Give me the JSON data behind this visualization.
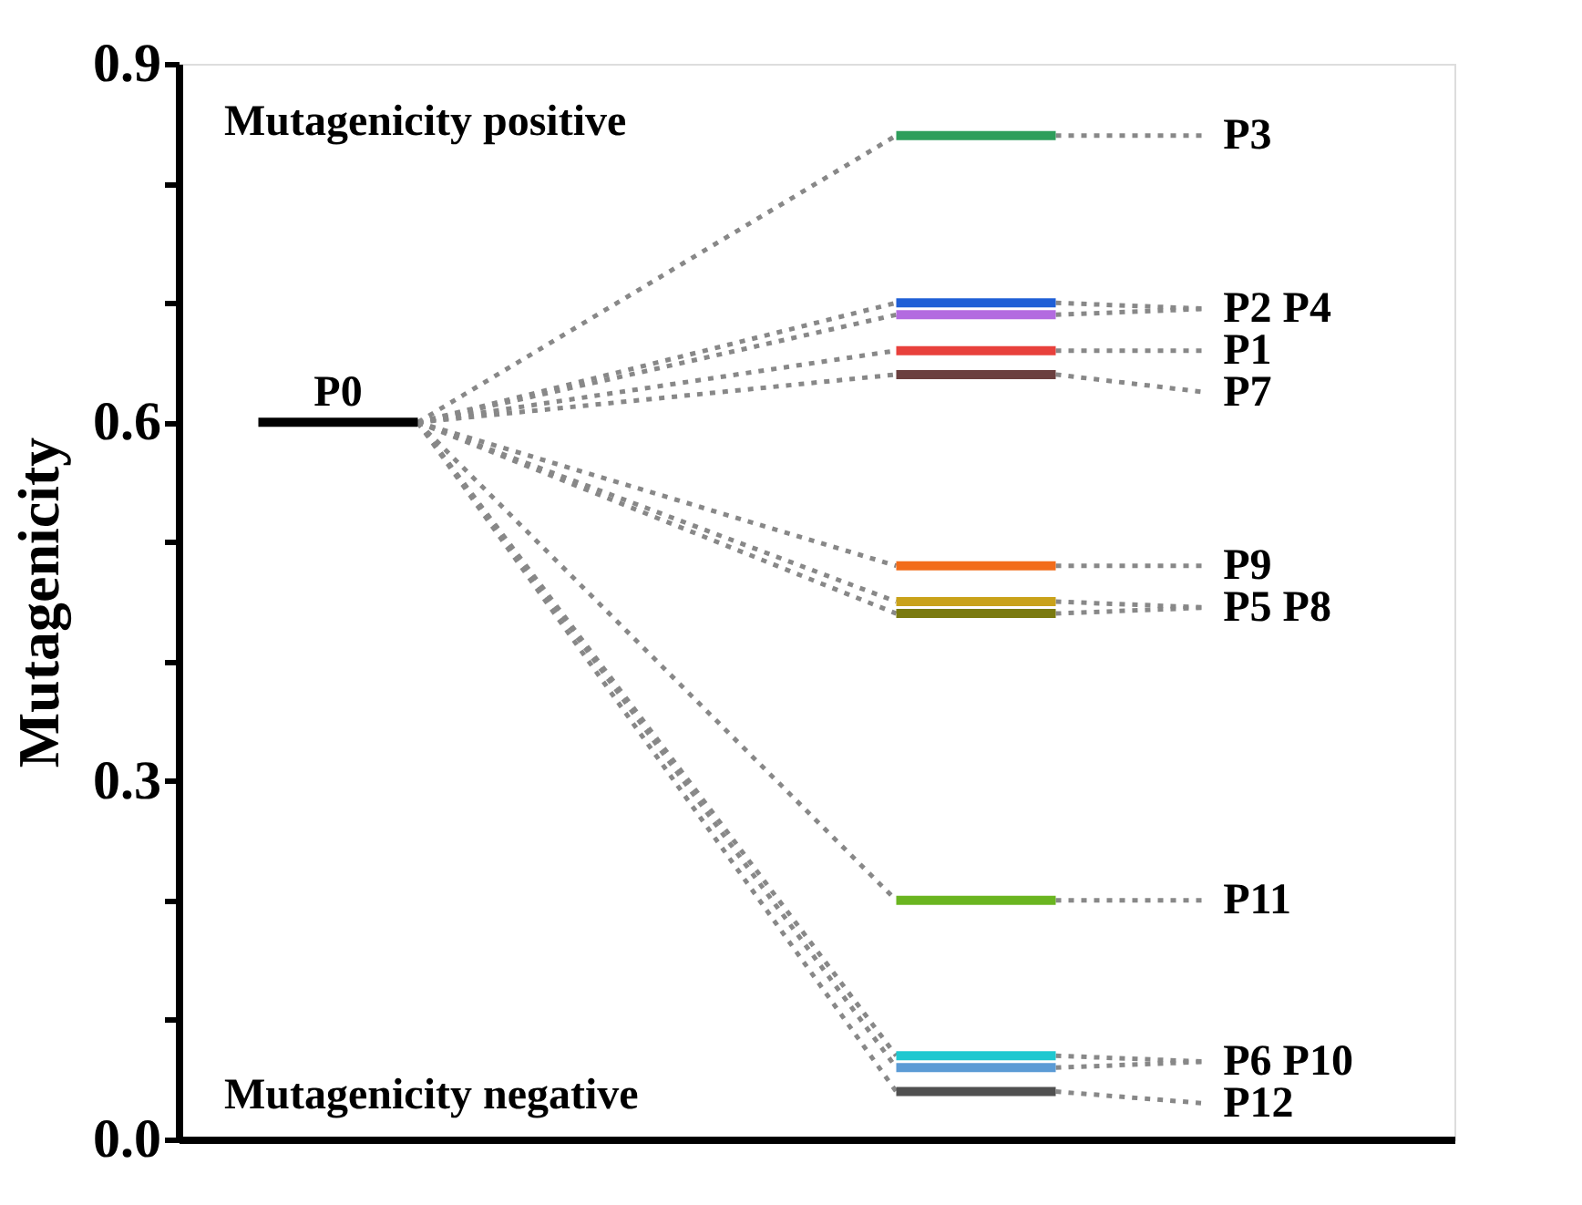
{
  "chart_data": {
    "type": "line",
    "ylabel": "Mutagenicity",
    "categories": [
      null,
      null,
      null,
      null,
      null,
      null,
      null,
      null
    ],
    "ylim": [
      0,
      0.9
    ],
    "yticks": [
      {
        "value": 0,
        "label": "0.0"
      },
      {
        "value": 0.1,
        "label": null
      },
      {
        "value": 0.2,
        "label": null
      },
      {
        "value": 0.3,
        "label": "0.3"
      },
      {
        "value": 0.4,
        "label": null
      },
      {
        "value": 0.5,
        "label": null
      },
      {
        "value": 0.6,
        "label": "0.6"
      },
      {
        "value": 0.7,
        "label": null
      },
      {
        "value": 0.8,
        "label": null
      },
      {
        "value": 0.9,
        "label": "0.9"
      }
    ],
    "tick_labels": "y",
    "grid": false,
    "series": [
      {
        "color": "#000000",
        "values": [
          0.6,
          0.6,
          null,
          null,
          null,
          null,
          null,
          null
        ]
      },
      {
        "color": "#2e9e5b",
        "values": [
          null,
          null,
          null,
          null,
          0.84,
          0.84,
          null,
          null
        ]
      },
      {
        "color": "#1f5fd6",
        "values": [
          null,
          null,
          null,
          null,
          0.7,
          0.7,
          null,
          null
        ]
      },
      {
        "color": "#b36be0",
        "values": [
          null,
          null,
          null,
          null,
          0.69,
          0.69,
          null,
          null
        ]
      },
      {
        "color": "#e8413c",
        "values": [
          null,
          null,
          null,
          null,
          0.66,
          0.66,
          null,
          null
        ]
      },
      {
        "color": "#6b3f3f",
        "values": [
          null,
          null,
          null,
          null,
          0.64,
          0.64,
          null,
          null
        ]
      },
      {
        "color": "#f26c1a",
        "values": [
          null,
          null,
          null,
          null,
          0.48,
          0.48,
          null,
          null
        ]
      },
      {
        "color": "#c9a21a",
        "values": [
          null,
          null,
          null,
          null,
          0.45,
          0.45,
          null,
          null
        ]
      },
      {
        "color": "#7a7a10",
        "values": [
          null,
          null,
          null,
          null,
          0.44,
          0.44,
          null,
          null
        ]
      },
      {
        "color": "#6ab520",
        "values": [
          null,
          null,
          null,
          null,
          0.2,
          0.2,
          null,
          null
        ]
      },
      {
        "color": "#1fc8d0",
        "values": [
          null,
          null,
          null,
          null,
          0.07,
          0.07,
          null,
          null
        ]
      },
      {
        "color": "#5b9bd5",
        "values": [
          null,
          null,
          null,
          null,
          0.06,
          0.06,
          null,
          null
        ]
      },
      {
        "color": "#505050",
        "values": [
          null,
          null,
          null,
          null,
          0.04,
          0.04,
          null,
          null
        ]
      }
    ],
    "annotations": [
      "Mutagenicity positive",
      "Mutagenicity negative",
      "P0",
      "P3",
      "P2 P4",
      "P1",
      "P7",
      "P9",
      "P5 P8",
      "P11",
      "P6 P10",
      "P12"
    ]
  }
}
